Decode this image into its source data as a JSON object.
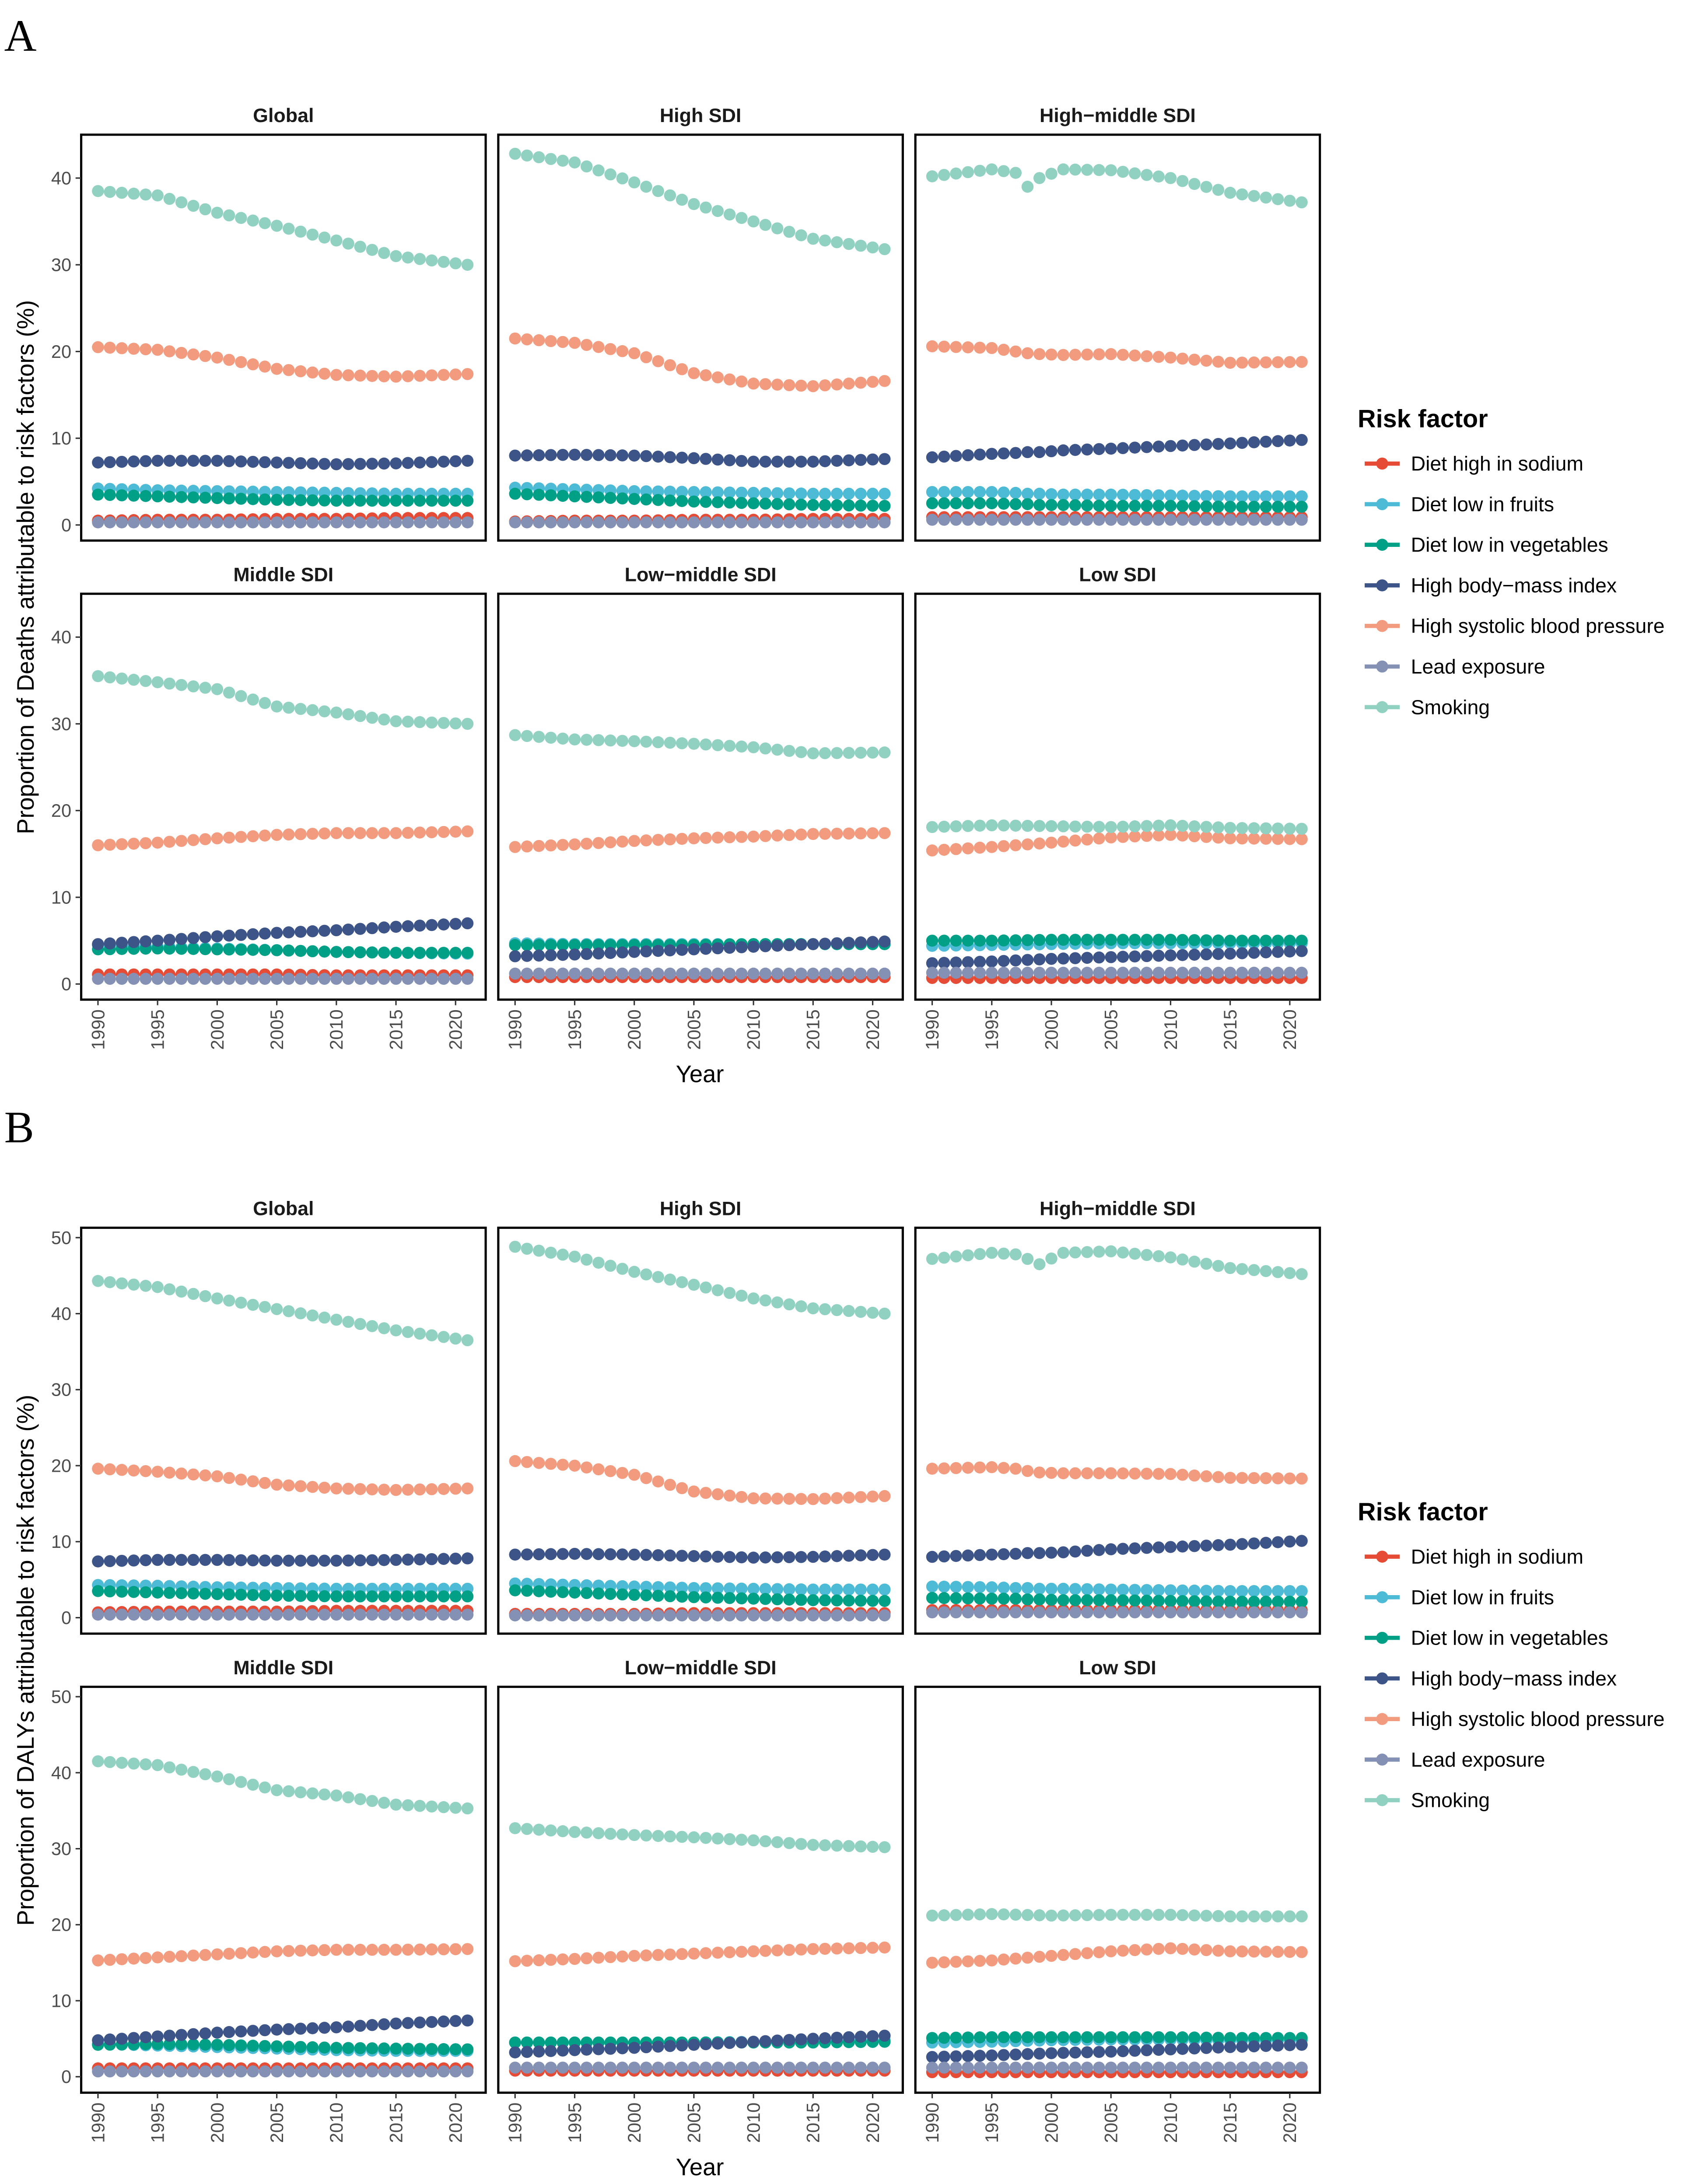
{
  "colors": {
    "Diet high in sodium": "#E64B35",
    "Diet low in fruits": "#4DBBD5",
    "Diet low in vegetables": "#00A087",
    "High body-mass index": "#3C5488",
    "High systolic blood pressure": "#F39B7F",
    "Lead exposure": "#8491B4",
    "Smoking": "#91D1C2"
  },
  "chart_data": [
    {
      "figure_label": "A",
      "type": "scatter",
      "ylabel": "Proportion of Deaths attributable to risk factors (%)",
      "xlabel": "Year",
      "legend_title": "Risk factor",
      "legend_position": "right",
      "series_names": [
        "Diet high in sodium",
        "Diet low in fruits",
        "Diet low in vegetables",
        "High body−mass index",
        "High systolic blood pressure",
        "Lead exposure",
        "Smoking"
      ],
      "ylim": [
        -1.8,
        45
      ],
      "yticks": [
        0,
        10,
        20,
        30,
        40
      ],
      "xticks": [
        1990,
        1995,
        2000,
        2005,
        2010,
        2015,
        2020
      ],
      "grid": false,
      "panels": [
        {
          "title": "Global",
          "x": [
            1990,
            1995,
            2000,
            2005,
            2010,
            2015,
            2021
          ],
          "values": [
            [
              0.5,
              0.6,
              0.6,
              0.7,
              0.7,
              0.8,
              0.8
            ],
            [
              4.2,
              4.0,
              3.9,
              3.8,
              3.7,
              3.6,
              3.6
            ],
            [
              3.5,
              3.3,
              3.1,
              2.9,
              2.8,
              2.8,
              2.8
            ],
            [
              7.2,
              7.4,
              7.4,
              7.2,
              7.0,
              7.1,
              7.4
            ],
            [
              20.5,
              20.2,
              19.3,
              18.0,
              17.3,
              17.1,
              17.4
            ],
            [
              0.3,
              0.3,
              0.3,
              0.3,
              0.3,
              0.3,
              0.3
            ],
            [
              38.5,
              38.0,
              36.0,
              34.5,
              32.8,
              31.0,
              30.0
            ]
          ]
        },
        {
          "title": "High SDI",
          "x": [
            1990,
            1995,
            2000,
            2005,
            2010,
            2015,
            2021
          ],
          "values": [
            [
              0.4,
              0.5,
              0.5,
              0.6,
              0.6,
              0.7,
              0.7
            ],
            [
              4.3,
              4.1,
              3.9,
              3.8,
              3.7,
              3.6,
              3.6
            ],
            [
              3.6,
              3.3,
              3.0,
              2.7,
              2.5,
              2.3,
              2.2
            ],
            [
              8.0,
              8.1,
              8.0,
              7.7,
              7.3,
              7.3,
              7.6
            ],
            [
              21.5,
              21.0,
              19.8,
              17.5,
              16.3,
              16.0,
              16.6
            ],
            [
              0.3,
              0.3,
              0.3,
              0.3,
              0.3,
              0.3,
              0.3
            ],
            [
              42.8,
              41.8,
              39.5,
              37.0,
              35.0,
              33.0,
              31.8
            ]
          ]
        },
        {
          "title": "High−middle SDI",
          "x": [
            1990,
            1995,
            1997,
            1998,
            1999,
            2001,
            2005,
            2010,
            2015,
            2021
          ],
          "values": [
            [
              0.9,
              0.9,
              0.9,
              0.9,
              0.9,
              0.9,
              0.9,
              0.9,
              0.9,
              0.9
            ],
            [
              3.8,
              3.8,
              3.7,
              3.6,
              3.6,
              3.5,
              3.5,
              3.4,
              3.3,
              3.3
            ],
            [
              2.5,
              2.5,
              2.4,
              2.4,
              2.3,
              2.3,
              2.2,
              2.2,
              2.1,
              2.1
            ],
            [
              7.8,
              8.2,
              8.3,
              8.4,
              8.4,
              8.6,
              8.8,
              9.1,
              9.4,
              9.8
            ],
            [
              20.6,
              20.4,
              20.0,
              19.8,
              19.7,
              19.6,
              19.7,
              19.3,
              18.7,
              18.8
            ],
            [
              0.6,
              0.6,
              0.6,
              0.6,
              0.6,
              0.6,
              0.6,
              0.6,
              0.6,
              0.6
            ],
            [
              40.2,
              41.0,
              40.6,
              39.0,
              40.0,
              41.0,
              40.9,
              40.0,
              38.3,
              37.2
            ]
          ]
        },
        {
          "title": "Middle SDI",
          "x": [
            1990,
            1995,
            2000,
            2005,
            2010,
            2015,
            2021
          ],
          "values": [
            [
              1.1,
              1.1,
              1.1,
              1.1,
              1.0,
              1.0,
              1.0
            ],
            [
              4.5,
              4.3,
              4.1,
              3.9,
              3.7,
              3.6,
              3.5
            ],
            [
              4.0,
              4.1,
              4.0,
              3.9,
              3.7,
              3.6,
              3.6
            ],
            [
              4.6,
              5.0,
              5.5,
              5.9,
              6.2,
              6.6,
              7.0
            ],
            [
              16.0,
              16.3,
              16.8,
              17.2,
              17.4,
              17.4,
              17.6
            ],
            [
              0.6,
              0.6,
              0.6,
              0.6,
              0.6,
              0.6,
              0.6
            ],
            [
              35.5,
              34.8,
              34.0,
              32.0,
              31.3,
              30.3,
              30.0
            ]
          ]
        },
        {
          "title": "Low−middle SDI",
          "x": [
            1990,
            1995,
            2000,
            2005,
            2010,
            2015,
            2021
          ],
          "values": [
            [
              0.8,
              0.8,
              0.8,
              0.8,
              0.8,
              0.8,
              0.8
            ],
            [
              4.7,
              4.6,
              4.6,
              4.6,
              4.6,
              4.6,
              4.6
            ],
            [
              4.5,
              4.5,
              4.5,
              4.5,
              4.6,
              4.6,
              4.6
            ],
            [
              3.2,
              3.4,
              3.7,
              4.0,
              4.3,
              4.6,
              4.9
            ],
            [
              15.8,
              16.1,
              16.5,
              16.8,
              17.0,
              17.3,
              17.4
            ],
            [
              1.2,
              1.2,
              1.2,
              1.2,
              1.2,
              1.2,
              1.2
            ],
            [
              28.7,
              28.2,
              28.0,
              27.7,
              27.3,
              26.6,
              26.7
            ]
          ]
        },
        {
          "title": "Low SDI",
          "x": [
            1990,
            1995,
            2000,
            2005,
            2010,
            2015,
            2021
          ],
          "values": [
            [
              0.7,
              0.7,
              0.7,
              0.7,
              0.7,
              0.7,
              0.7
            ],
            [
              4.4,
              4.5,
              4.6,
              4.7,
              4.7,
              4.7,
              4.7
            ],
            [
              5.0,
              5.0,
              5.1,
              5.1,
              5.1,
              5.0,
              5.0
            ],
            [
              2.4,
              2.6,
              2.9,
              3.1,
              3.3,
              3.5,
              3.8
            ],
            [
              15.4,
              15.8,
              16.3,
              16.9,
              17.2,
              16.8,
              16.7
            ],
            [
              1.3,
              1.3,
              1.3,
              1.3,
              1.3,
              1.3,
              1.3
            ],
            [
              18.1,
              18.3,
              18.2,
              18.1,
              18.3,
              18.0,
              17.9
            ]
          ]
        }
      ]
    },
    {
      "figure_label": "B",
      "type": "scatter",
      "ylabel": "Proportion of DALYs attributable to risk factors (%)",
      "xlabel": "Year",
      "legend_title": "Risk factor",
      "legend_position": "right",
      "series_names": [
        "Diet high in sodium",
        "Diet low in fruits",
        "Diet low in vegetables",
        "High body−mass index",
        "High systolic blood pressure",
        "Lead exposure",
        "Smoking"
      ],
      "ylim": [
        -2.1,
        51.3
      ],
      "yticks": [
        0,
        10,
        20,
        30,
        40,
        50
      ],
      "xticks": [
        1990,
        1995,
        2000,
        2005,
        2010,
        2015,
        2020
      ],
      "grid": false,
      "panels": [
        {
          "title": "Global",
          "x": [
            1990,
            1995,
            2000,
            2005,
            2010,
            2015,
            2021
          ],
          "values": [
            [
              0.7,
              0.8,
              0.8,
              0.8,
              0.9,
              0.9,
              0.9
            ],
            [
              4.3,
              4.2,
              4.0,
              3.9,
              3.8,
              3.8,
              3.8
            ],
            [
              3.5,
              3.3,
              3.1,
              2.9,
              2.8,
              2.8,
              2.8
            ],
            [
              7.4,
              7.6,
              7.6,
              7.5,
              7.5,
              7.6,
              7.8
            ],
            [
              19.6,
              19.2,
              18.6,
              17.5,
              17.0,
              16.8,
              17.0
            ],
            [
              0.4,
              0.4,
              0.4,
              0.4,
              0.4,
              0.4,
              0.4
            ],
            [
              44.3,
              43.5,
              42.0,
              40.6,
              39.2,
              37.8,
              36.5
            ]
          ]
        },
        {
          "title": "High SDI",
          "x": [
            1990,
            1995,
            2000,
            2005,
            2010,
            2015,
            2021
          ],
          "values": [
            [
              0.5,
              0.5,
              0.5,
              0.6,
              0.6,
              0.6,
              0.6
            ],
            [
              4.5,
              4.3,
              4.1,
              3.9,
              3.8,
              3.7,
              3.7
            ],
            [
              3.6,
              3.3,
              3.0,
              2.7,
              2.5,
              2.3,
              2.2
            ],
            [
              8.3,
              8.4,
              8.3,
              8.1,
              7.9,
              8.0,
              8.3
            ],
            [
              20.6,
              20.0,
              18.8,
              16.6,
              15.7,
              15.6,
              16.0
            ],
            [
              0.3,
              0.3,
              0.3,
              0.3,
              0.3,
              0.3,
              0.3
            ],
            [
              48.8,
              47.5,
              45.5,
              43.8,
              42.0,
              40.7,
              40.0
            ]
          ]
        },
        {
          "title": "High−middle SDI",
          "x": [
            1990,
            1995,
            1997,
            1998,
            1999,
            2001,
            2005,
            2010,
            2015,
            2021
          ],
          "values": [
            [
              1.0,
              1.0,
              1.0,
              1.0,
              1.0,
              1.0,
              1.0,
              1.0,
              1.0,
              1.0
            ],
            [
              4.1,
              4.0,
              3.9,
              3.9,
              3.8,
              3.8,
              3.7,
              3.6,
              3.5,
              3.5
            ],
            [
              2.6,
              2.5,
              2.5,
              2.4,
              2.4,
              2.3,
              2.3,
              2.2,
              2.1,
              2.1
            ],
            [
              8.0,
              8.3,
              8.4,
              8.5,
              8.5,
              8.6,
              9.0,
              9.3,
              9.6,
              10.1
            ],
            [
              19.6,
              19.8,
              19.6,
              19.3,
              19.1,
              19.0,
              19.0,
              18.9,
              18.4,
              18.3
            ],
            [
              0.7,
              0.7,
              0.7,
              0.7,
              0.7,
              0.7,
              0.7,
              0.7,
              0.7,
              0.7
            ],
            [
              47.2,
              48.0,
              47.8,
              47.2,
              46.5,
              48.0,
              48.2,
              47.4,
              46.0,
              45.2
            ]
          ]
        },
        {
          "title": "Middle SDI",
          "x": [
            1990,
            1995,
            2000,
            2005,
            2010,
            2015,
            2021
          ],
          "values": [
            [
              1.1,
              1.1,
              1.1,
              1.1,
              1.1,
              1.1,
              1.1
            ],
            [
              4.3,
              4.1,
              3.9,
              3.7,
              3.5,
              3.4,
              3.4
            ],
            [
              4.2,
              4.3,
              4.2,
              4.0,
              3.8,
              3.7,
              3.6
            ],
            [
              4.8,
              5.3,
              5.8,
              6.2,
              6.5,
              7.0,
              7.4
            ],
            [
              15.3,
              15.7,
              16.1,
              16.5,
              16.7,
              16.7,
              16.8
            ],
            [
              0.7,
              0.7,
              0.7,
              0.7,
              0.7,
              0.7,
              0.7
            ],
            [
              41.5,
              41.0,
              39.5,
              37.7,
              37.0,
              35.8,
              35.3
            ]
          ]
        },
        {
          "title": "Low−middle SDI",
          "x": [
            1990,
            1995,
            2000,
            2005,
            2010,
            2015,
            2021
          ],
          "values": [
            [
              0.8,
              0.8,
              0.8,
              0.8,
              0.8,
              0.8,
              0.8
            ],
            [
              4.5,
              4.5,
              4.5,
              4.5,
              4.6,
              4.7,
              4.8
            ],
            [
              4.5,
              4.5,
              4.5,
              4.5,
              4.5,
              4.5,
              4.6
            ],
            [
              3.2,
              3.5,
              3.8,
              4.2,
              4.6,
              5.0,
              5.4
            ],
            [
              15.2,
              15.5,
              15.9,
              16.2,
              16.5,
              16.8,
              17.0
            ],
            [
              1.2,
              1.2,
              1.2,
              1.2,
              1.2,
              1.2,
              1.2
            ],
            [
              32.7,
              32.2,
              31.8,
              31.5,
              31.1,
              30.5,
              30.2
            ]
          ]
        },
        {
          "title": "Low SDI",
          "x": [
            1990,
            1995,
            2000,
            2005,
            2010,
            2015,
            2021
          ],
          "values": [
            [
              0.6,
              0.6,
              0.6,
              0.6,
              0.6,
              0.6,
              0.6
            ],
            [
              4.5,
              4.6,
              4.8,
              4.9,
              4.9,
              4.8,
              4.8
            ],
            [
              5.1,
              5.2,
              5.2,
              5.2,
              5.2,
              5.1,
              5.1
            ],
            [
              2.6,
              2.8,
              3.1,
              3.3,
              3.6,
              3.9,
              4.2
            ],
            [
              15.0,
              15.3,
              15.9,
              16.5,
              16.9,
              16.5,
              16.4
            ],
            [
              1.2,
              1.2,
              1.2,
              1.2,
              1.2,
              1.2,
              1.2
            ],
            [
              21.2,
              21.4,
              21.2,
              21.3,
              21.3,
              21.1,
              21.1
            ]
          ]
        }
      ]
    }
  ]
}
